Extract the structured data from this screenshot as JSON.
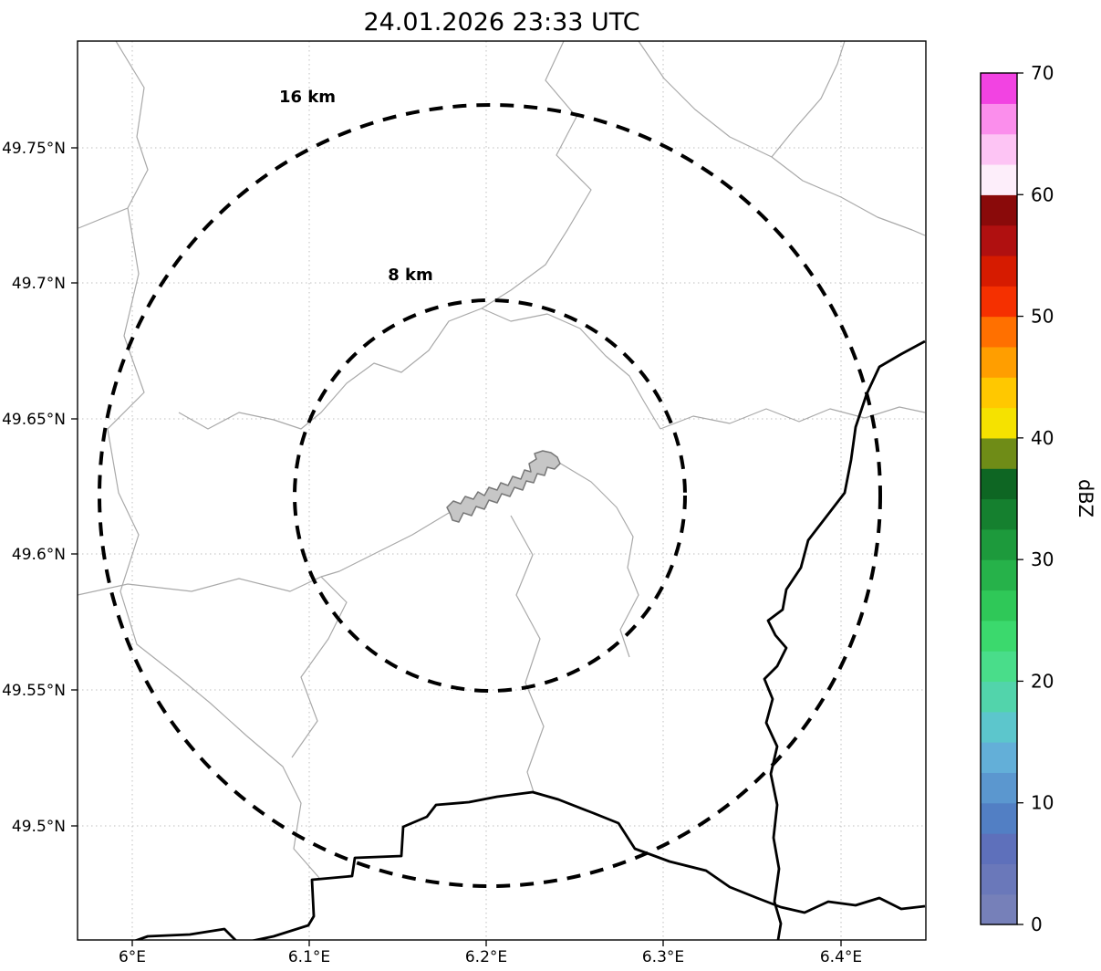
{
  "title": "24.01.2026 23:33 UTC",
  "map": {
    "x_ticks": [
      "6°E",
      "6.1°E",
      "6.2°E",
      "6.3°E",
      "6.4°E"
    ],
    "y_ticks": [
      "49.75°N",
      "49.7°N",
      "49.65°N",
      "49.6°N",
      "49.55°N",
      "49.5°N"
    ],
    "range_rings": [
      {
        "label": "16 km",
        "radius_km": 16
      },
      {
        "label": "8 km",
        "radius_km": 8
      }
    ]
  },
  "colorbar": {
    "label": "dBZ",
    "ticks": [
      "0",
      "10",
      "20",
      "30",
      "40",
      "50",
      "60",
      "70"
    ],
    "tick_min": 0,
    "tick_max": 70,
    "colors_bottom_to_top": [
      "#7680b9",
      "#6a78ba",
      "#5e70bb",
      "#527fc4",
      "#5b97cf",
      "#63afd8",
      "#5cc6cc",
      "#52d4ab",
      "#49dd8a",
      "#3bd96d",
      "#2fc858",
      "#26b24a",
      "#1d9a3c",
      "#15802f",
      "#0e6623",
      "#6f8c17",
      "#f5e200",
      "#ffc800",
      "#ff9e00",
      "#ff7000",
      "#f53000",
      "#d61b00",
      "#b01010",
      "#8a0a0a",
      "#fdeefa",
      "#fdc4f4",
      "#fb8eec",
      "#f243e2"
    ]
  }
}
